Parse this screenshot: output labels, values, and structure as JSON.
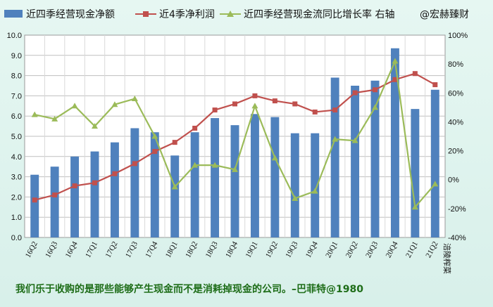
{
  "legend": {
    "items": [
      {
        "label": "近四季经营现金净额",
        "color": "#4f81bd",
        "kind": "bar"
      },
      {
        "label": "近4季净利润",
        "color": "#c0504d",
        "kind": "line-square"
      },
      {
        "label": "近四季经营现金流同比增长率 右轴",
        "color": "#9bbb59",
        "kind": "line-triangle"
      }
    ],
    "watermark": "@宏赫臻财"
  },
  "footer_note": "我们乐于收购的是那些能够产生现金而不是消耗掉现金的公司。–巴菲特@1980",
  "corner_label": "涪陵榨菜",
  "chart_data": {
    "type": "bar",
    "categories": [
      "16Q2",
      "16Q3",
      "16Q4",
      "17Q1",
      "17Q2",
      "17Q3",
      "17Q4",
      "18Q1",
      "18Q2",
      "18Q3",
      "18Q4",
      "19Q1",
      "19Q2",
      "19Q3",
      "19Q4",
      "20Q1",
      "20Q2",
      "20Q3",
      "20Q4",
      "21Q1",
      "21Q2"
    ],
    "series": [
      {
        "name": "近四季经营现金净额",
        "type": "bar",
        "axis": "left",
        "color": "#4f81bd",
        "values": [
          3.1,
          3.5,
          4.0,
          4.25,
          4.7,
          5.4,
          5.2,
          4.05,
          5.2,
          5.9,
          5.55,
          6.1,
          5.95,
          5.15,
          5.15,
          7.9,
          7.5,
          7.75,
          9.35,
          6.35,
          7.3
        ]
      },
      {
        "name": "近4季净利润",
        "type": "line",
        "axis": "left",
        "color": "#c0504d",
        "values": [
          1.85,
          2.1,
          2.55,
          2.7,
          3.15,
          3.65,
          4.25,
          4.7,
          5.4,
          6.3,
          6.6,
          7.0,
          6.75,
          6.6,
          6.2,
          6.3,
          7.15,
          7.3,
          7.8,
          8.1,
          7.55
        ]
      },
      {
        "name": "近四季经营现金流同比增长率 右轴",
        "type": "line",
        "axis": "right",
        "color": "#9bbb59",
        "values": [
          45,
          42,
          51,
          37,
          52,
          56,
          30,
          -5,
          10,
          10,
          7,
          51,
          15,
          -13,
          -8,
          28,
          27,
          50,
          82,
          -19,
          -3
        ]
      }
    ],
    "ylim_left": [
      0,
      10
    ],
    "yticks_left": [
      "0.0",
      "1.0",
      "2.0",
      "3.0",
      "4.0",
      "5.0",
      "6.0",
      "7.0",
      "8.0",
      "9.0",
      "10.0"
    ],
    "ylim_right": [
      -40,
      100
    ],
    "yticks_right": [
      "-40%",
      "-20%",
      "0%",
      "20%",
      "40%",
      "60%",
      "80%",
      "100%"
    ],
    "grid": true,
    "legend_position": "top"
  }
}
